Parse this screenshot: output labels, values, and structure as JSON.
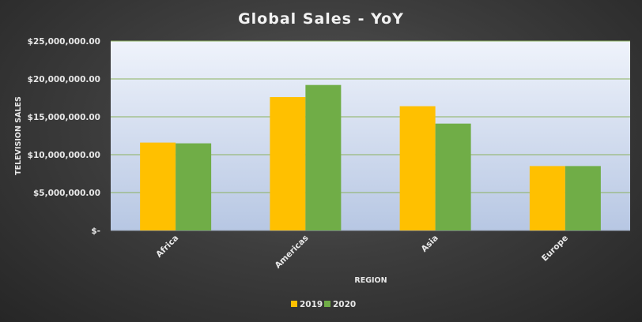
{
  "chart_data": {
    "type": "bar",
    "title": "Global Sales - YoY",
    "xlabel": "REGION",
    "ylabel": "TELEVISION SALES",
    "categories": [
      "Africa",
      "Americas",
      "Asia",
      "Europe"
    ],
    "series": [
      {
        "name": "2019",
        "color": "#FFC000",
        "values": [
          11600000,
          17600000,
          16400000,
          8500000
        ]
      },
      {
        "name": "2020",
        "color": "#70AD47",
        "values": [
          11500000,
          19200000,
          14100000,
          8500000
        ]
      }
    ],
    "ylim": [
      0,
      25000000
    ],
    "yticks": [
      0,
      5000000,
      10000000,
      15000000,
      20000000,
      25000000
    ],
    "ytick_labels": [
      "$-",
      "$5,000,000.00",
      "$10,000,000.00",
      "$15,000,000.00",
      "$20,000,000.00",
      "$25,000,000.00"
    ],
    "grid": true,
    "legend_position": "bottom",
    "colors": {
      "plot_top": "#eff3fb",
      "plot_bottom": "#b7c7e3",
      "gridline": "#8bb15f",
      "text": "#e8e8e8"
    }
  }
}
